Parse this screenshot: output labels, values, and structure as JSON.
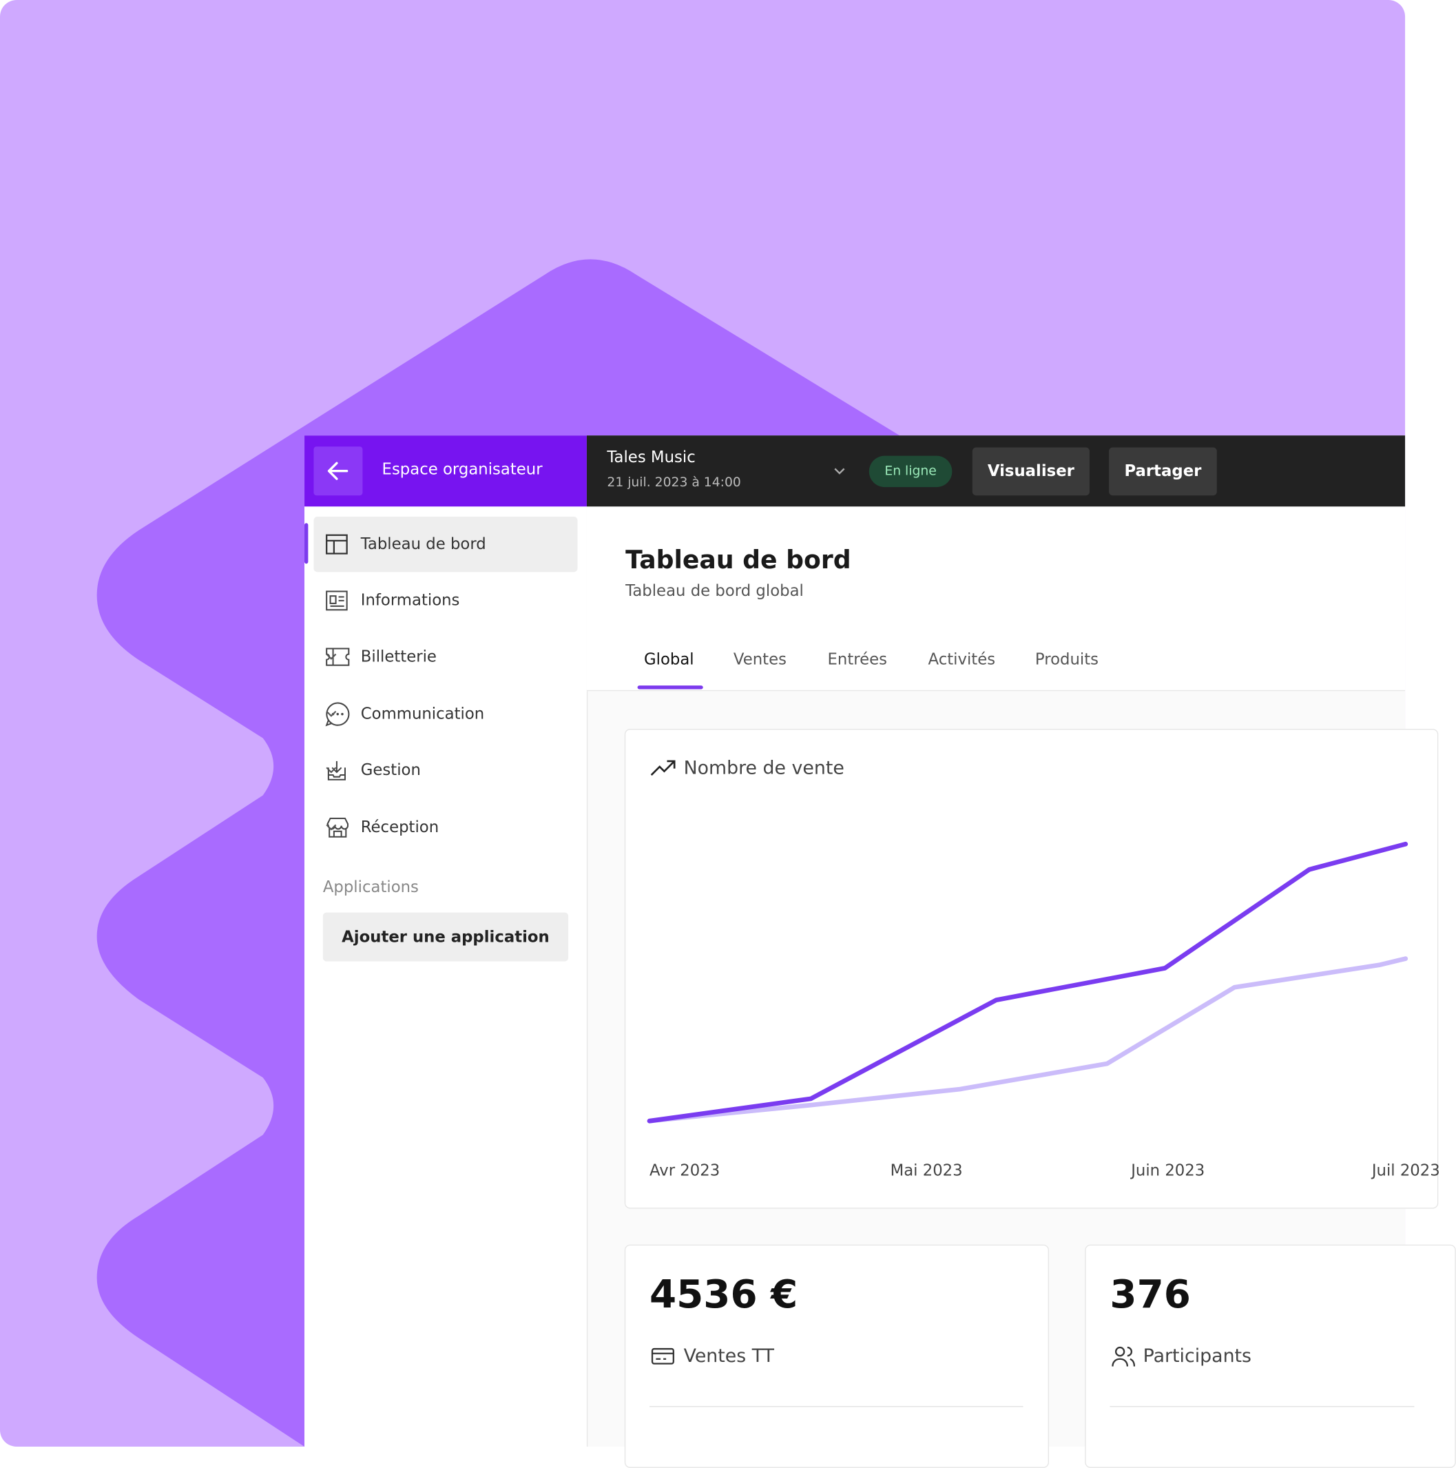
{
  "header": {
    "back_label": "Espace organisateur",
    "event_name": "Tales Music",
    "event_date": "21 juil. 2023 à 14:00",
    "status": "En ligne",
    "buttons": [
      "Visualiser",
      "Partager"
    ]
  },
  "sidebar": {
    "items": [
      "Tableau de bord",
      "Informations",
      "Billetterie",
      "Communication",
      "Gestion",
      "Réception"
    ],
    "section": "Applications",
    "add_button": "Ajouter une application"
  },
  "page": {
    "title": "Tableau de bord",
    "subtitle": "Tableau de bord global",
    "tabs": [
      "Global",
      "Ventes",
      "Entrées",
      "Activités",
      "Produits"
    ]
  },
  "chart_data": {
    "type": "line",
    "title": "Nombre de vente",
    "xlim": [
      0,
      4
    ],
    "ylim": [
      0,
      100
    ],
    "xticks": [
      {
        "value": 0,
        "label": "Avr 2023"
      },
      {
        "value": 1,
        "label": "Mai 2023"
      },
      {
        "value": 2,
        "label": "Juin 2023"
      },
      {
        "value": 3,
        "label": "Juil 2023"
      }
    ],
    "series": [
      {
        "color": "#7a3cf0",
        "x": [
          0,
          0.67,
          1.44,
          2.14,
          2.74,
          3.14
        ],
        "values": [
          0,
          7,
          38,
          48,
          79,
          87
        ]
      },
      {
        "color": "#cbbcfa",
        "x": [
          0,
          0.67,
          1.29,
          1.9,
          2.43,
          3.03,
          3.14
        ],
        "values": [
          0,
          5,
          10,
          18,
          42,
          49,
          51
        ]
      }
    ]
  },
  "stats": [
    {
      "value": "4536 €",
      "label": "Ventes TT"
    },
    {
      "value": "376",
      "label": "Participants"
    }
  ]
}
